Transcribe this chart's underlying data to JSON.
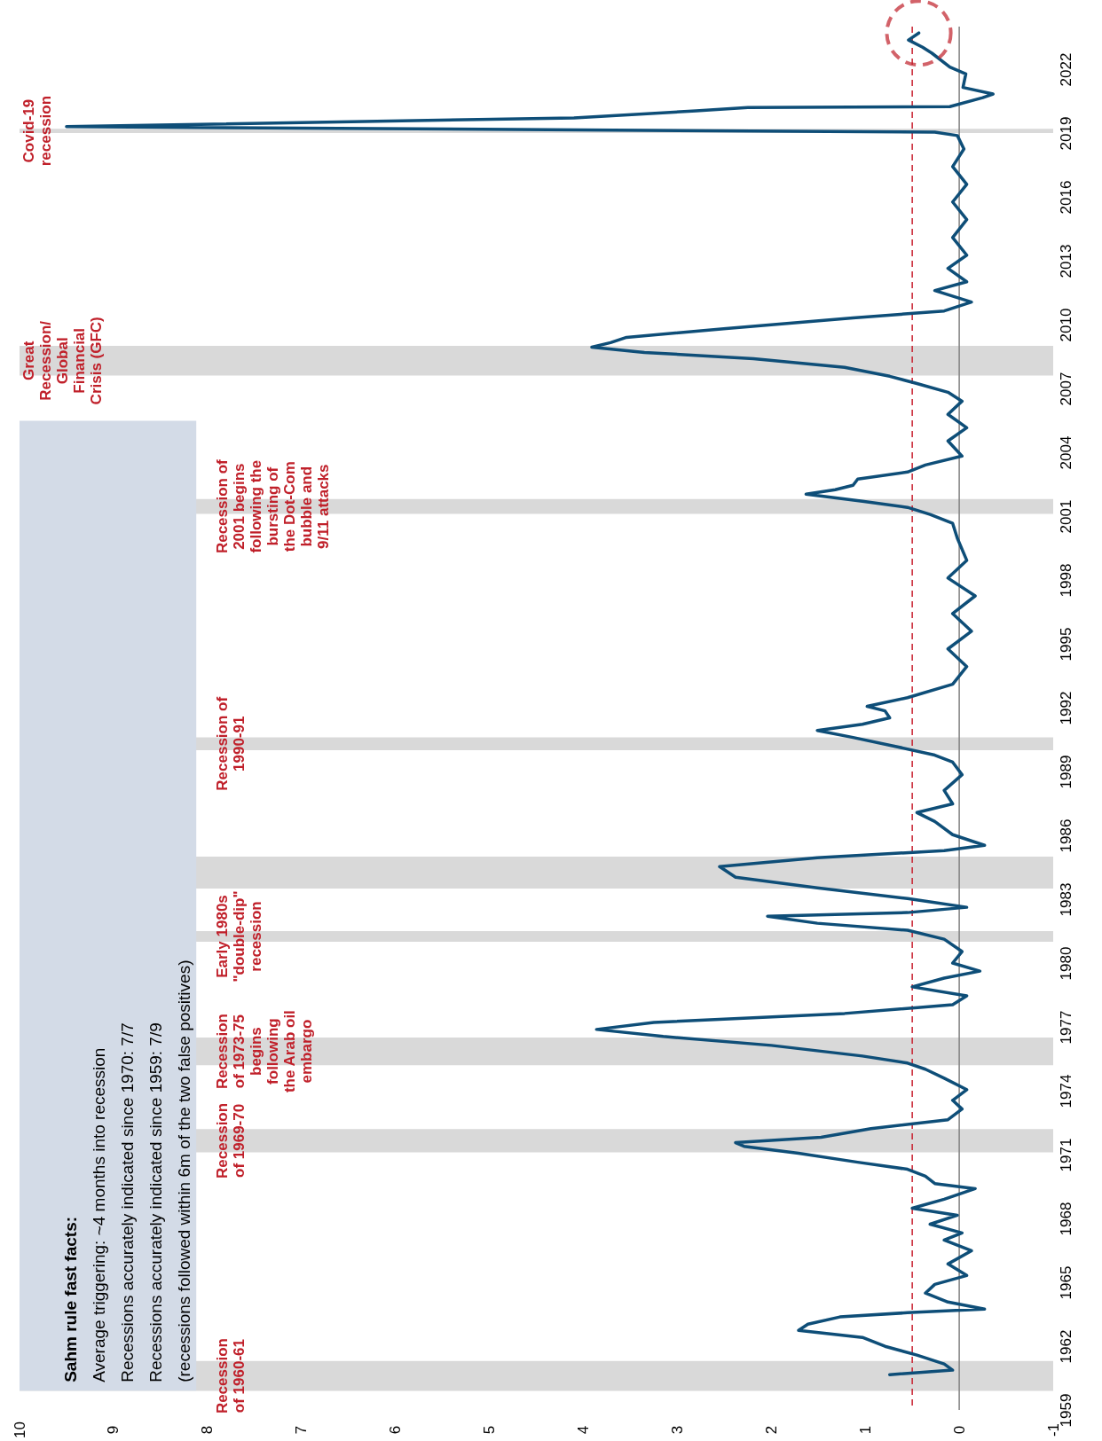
{
  "chart_data": {
    "type": "line",
    "orientation": "horizontal",
    "x": [
      1960.66,
      1960.87,
      1961.16,
      1961.58,
      1961.99,
      1962.41,
      1962.74,
      1963.03,
      1963.37,
      1963.57,
      1963.74,
      1964.07,
      1964.49,
      1964.9,
      1965.32,
      1965.86,
      1966.48,
      1966.98,
      1967.32,
      1967.73,
      1968.15,
      1968.48,
      1968.9,
      1969.4,
      1969.64,
      1969.98,
      1970.31,
      1970.64,
      1971.06,
      1971.39,
      1971.56,
      1971.81,
      1972.22,
      1972.64,
      1973.14,
      1973.55,
      1974.05,
      1974.59,
      1975.01,
      1975.3,
      1975.63,
      1976.13,
      1976.55,
      1976.88,
      1977.21,
      1977.63,
      1978.04,
      1978.46,
      1978.88,
      1979.29,
      1979.62,
      1980.0,
      1980.54,
      1981.12,
      1981.54,
      1981.87,
      1982.2,
      1982.37,
      1982.62,
      1983.03,
      1983.53,
      1984.03,
      1984.53,
      1984.95,
      1985.28,
      1985.53,
      1986.03,
      1986.65,
      1987.07,
      1987.48,
      1988.11,
      1988.85,
      1989.44,
      1989.77,
      1990.19,
      1990.6,
      1990.93,
      1991.22,
      1991.52,
      1991.85,
      1992.06,
      1992.47,
      1993.1,
      1993.93,
      1994.76,
      1995.59,
      1996.42,
      1997.25,
      1998.09,
      1998.92,
      1999.96,
      2000.66,
      2001.08,
      2001.41,
      2001.7,
      2002.03,
      2002.24,
      2002.45,
      2002.74,
      2003.07,
      2003.4,
      2003.82,
      2004.53,
      2005.15,
      2005.78,
      2006.4,
      2006.82,
      2007.23,
      2007.57,
      2007.99,
      2008.4,
      2008.69,
      2008.94,
      2009.15,
      2009.4,
      2009.81,
      2010.31,
      2010.64,
      2011.06,
      2011.6,
      2012.01,
      2012.64,
      2013.26,
      2014.09,
      2014.93,
      2015.76,
      2016.59,
      2017.42,
      2018.25,
      2018.88,
      2019.04,
      2019.3,
      2019.71,
      2020.04,
      2020.2,
      2020.24,
      2020.66,
      2020.83,
      2021.14,
      2021.78,
      2022.1,
      2022.75,
      2023.03,
      2023.37,
      2023.7
    ],
    "series": [
      {
        "color": "#0e4e78",
        "values": [
          0.74,
          0.07,
          0.16,
          0.45,
          0.79,
          1.03,
          1.71,
          1.61,
          1.27,
          0.55,
          -0.27,
          0.12,
          0.36,
          0.26,
          -0.08,
          0.12,
          -0.13,
          0.16,
          -0.03,
          0.31,
          0.02,
          0.5,
          0.16,
          -0.17,
          0.26,
          0.36,
          0.55,
          1.08,
          1.71,
          2.29,
          2.38,
          1.47,
          0.94,
          0.12,
          -0.03,
          0.07,
          -0.08,
          0.16,
          0.36,
          0.55,
          1.03,
          2.0,
          3.15,
          3.86,
          3.25,
          1.22,
          0.07,
          -0.08,
          0.5,
          0.16,
          -0.22,
          0.07,
          -0.03,
          0.16,
          0.55,
          1.51,
          2.04,
          0.55,
          -0.08,
          0.55,
          1.51,
          2.38,
          2.55,
          1.51,
          0.16,
          -0.27,
          0.07,
          0.26,
          0.45,
          0.07,
          0.16,
          -0.03,
          0.07,
          0.26,
          0.69,
          1.13,
          1.51,
          1.03,
          0.74,
          0.79,
          0.98,
          0.55,
          0.07,
          -0.08,
          0.12,
          -0.13,
          0.07,
          -0.17,
          0.12,
          -0.08,
          0.02,
          0.07,
          0.31,
          0.55,
          1.03,
          1.63,
          1.32,
          1.13,
          1.08,
          0.55,
          0.36,
          -0.03,
          0.12,
          -0.08,
          0.12,
          -0.03,
          0.12,
          0.45,
          0.74,
          1.22,
          2.19,
          3.35,
          3.91,
          3.71,
          3.54,
          2.48,
          1.13,
          0.16,
          -0.13,
          0.26,
          -0.08,
          0.12,
          -0.08,
          0.07,
          -0.08,
          0.07,
          -0.08,
          0.07,
          -0.05,
          0.02,
          0.26,
          9.5,
          4.1,
          2.8,
          2.25,
          0.1,
          -0.25,
          -0.36,
          -0.04,
          -0.07,
          0.1,
          0.29,
          0.39,
          0.54,
          0.43
        ]
      }
    ],
    "xlim": [
      10,
      -1
    ],
    "xticks": [
      10,
      9,
      8,
      7,
      6,
      5,
      4,
      3,
      2,
      1,
      0,
      -1
    ],
    "ylim": [
      1959,
      2024
    ],
    "yticks": [
      1959,
      1962,
      1965,
      1968,
      1971,
      1974,
      1977,
      1980,
      1983,
      1986,
      1989,
      1992,
      1995,
      1998,
      2001,
      2004,
      2007,
      2010,
      2013,
      2016,
      2019,
      2022
    ],
    "grid": false,
    "line_style": "solid",
    "marker": "none",
    "ref_lines": [
      {
        "axis": "x",
        "value": 0,
        "color": "#808080",
        "line_style": "solid"
      },
      {
        "axis": "x",
        "value": 0.5,
        "color": "#c8202f",
        "line_style": "dashed"
      }
    ],
    "bands": [
      {
        "axis": "y",
        "from": 1959.9,
        "to": 1961.3,
        "color": "#d9d9d9",
        "label": "Recession\nof 1960-61"
      },
      {
        "axis": "y",
        "from": 1971.1,
        "to": 1972.2,
        "color": "#d9d9d9",
        "label": "Recession\nof 1969-70"
      },
      {
        "axis": "y",
        "from": 1975.2,
        "to": 1976.5,
        "color": "#d9d9d9",
        "label": "Recession\nof 1973-75\nbegins\nfollowing\nthe Arab oil\nembargo"
      },
      {
        "axis": "y",
        "from": 1981.0,
        "to": 1981.5,
        "color": "#d9d9d9",
        "label": "Early 1980s\n\"double-dip\"\nrecession"
      },
      {
        "axis": "y",
        "from": 1983.5,
        "to": 1985.0,
        "color": "#d9d9d9"
      },
      {
        "axis": "y",
        "from": 1990.0,
        "to": 1990.6,
        "color": "#d9d9d9",
        "label": "Recession of\n1990-91"
      },
      {
        "axis": "y",
        "from": 2001.1,
        "to": 2001.8,
        "color": "#d9d9d9",
        "label": "Recession of\n2001 begins\nfollowing the\nbursting of\nthe Dot-Com\nbubble and\n9/11 attacks"
      },
      {
        "axis": "y",
        "from": 2007.6,
        "to": 2009.0,
        "color": "#d9d9d9",
        "label": "Great\nRecession/\nGlobal\nFinancial\nCrisis (GFC)"
      },
      {
        "axis": "y",
        "from": 2019.0,
        "to": 2019.2,
        "color": "#d9d9d9",
        "label": "Covid-19\nrecession"
      }
    ],
    "annotations": [
      "Sahm rule fast facts:",
      "Average triggering: ~4 months into recession",
      "Recessions accurately indicated since 1970: 7/7",
      "Recessions accurately indicated since 1959: 7/9",
      "(recessions followed within 6m of the two false positives)"
    ]
  }
}
